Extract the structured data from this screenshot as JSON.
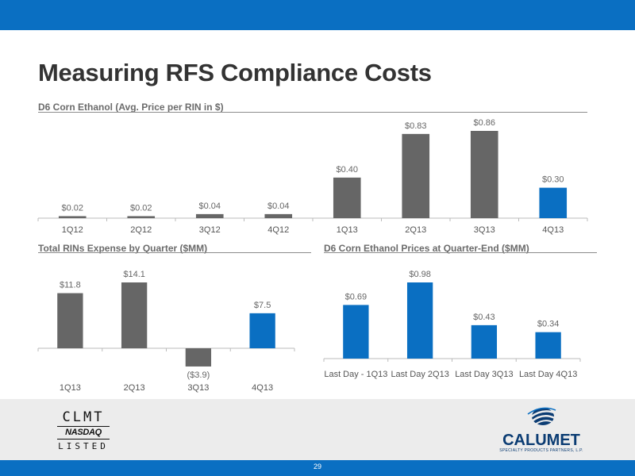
{
  "header": {
    "title": "Measuring RFS Compliance Costs"
  },
  "colors": {
    "brand_blue": "#0a6fc2",
    "bar_gray": "#666666",
    "bar_blue": "#0a6fc2",
    "title_gray": "#333333"
  },
  "footer": {
    "ticker": "CLMT",
    "exchange": "NASDAQ",
    "listed": "LISTED",
    "company": "CALUMET",
    "company_sub": "SPECIALTY PRODUCTS PARTNERS, L.P.",
    "page_number": "29"
  },
  "chart_data": [
    {
      "type": "bar",
      "title": "D6 Corn Ethanol (Avg. Price per RIN in $)",
      "categories": [
        "1Q12",
        "2Q12",
        "3Q12",
        "4Q12",
        "1Q13",
        "2Q13",
        "3Q13",
        "4Q13"
      ],
      "values": [
        0.02,
        0.02,
        0.04,
        0.04,
        0.4,
        0.83,
        0.86,
        0.3
      ],
      "labels": [
        "$0.02",
        "$0.02",
        "$0.04",
        "$0.04",
        "$0.40",
        "$0.83",
        "$0.86",
        "$0.30"
      ],
      "highlight_index": 7,
      "ylim": [
        0,
        0.86
      ]
    },
    {
      "type": "bar",
      "title": "Total RINs Expense by Quarter ($MM)",
      "categories": [
        "1Q13",
        "2Q13",
        "3Q13",
        "4Q13"
      ],
      "values": [
        11.8,
        14.1,
        -3.9,
        7.5
      ],
      "labels": [
        "$11.8",
        "$14.1",
        "($3.9)",
        "$7.5"
      ],
      "highlight_index": 3,
      "ylim": [
        -3.9,
        14.1
      ]
    },
    {
      "type": "bar",
      "title": "D6 Corn Ethanol Prices at Quarter-End ($MM)",
      "categories": [
        "Last Day - 1Q13",
        "Last Day 2Q13",
        "Last Day 3Q13",
        "Last Day 4Q13"
      ],
      "values": [
        0.69,
        0.98,
        0.43,
        0.34
      ],
      "labels": [
        "$0.69",
        "$0.98",
        "$0.43",
        "$0.34"
      ],
      "highlight_index": -1,
      "ylim": [
        0,
        0.98
      ]
    }
  ]
}
